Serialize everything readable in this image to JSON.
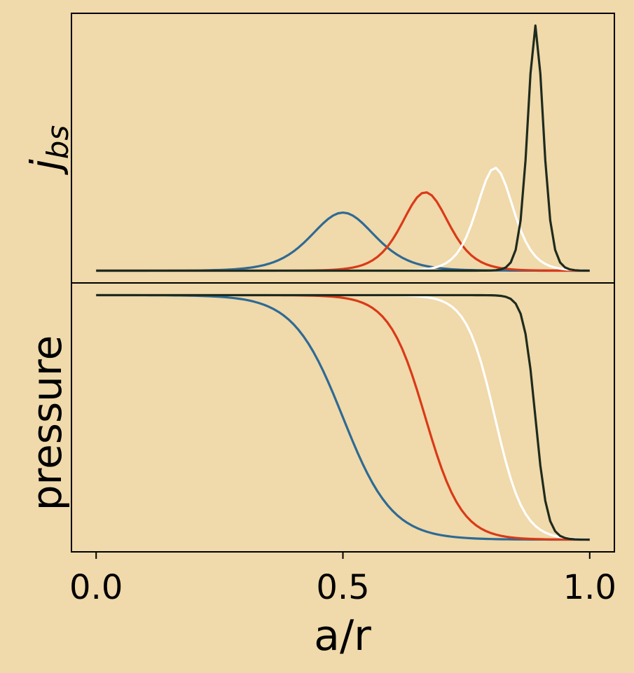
{
  "background": "#F0D9AA",
  "chart_data": [
    {
      "type": "line",
      "panel": "top",
      "ylabel_parts": {
        "base": "j",
        "sub": "bs"
      },
      "xlim": [
        -0.05,
        1.05
      ],
      "ylim": [
        -0.05,
        1.05
      ],
      "yticks": false,
      "grid": false,
      "legend": false,
      "series": [
        {
          "color": "#2E6A94",
          "peak_x": 0.5,
          "peak_y": 0.237,
          "width": 0.087
        },
        {
          "color": "#D93A18",
          "peak_x": 0.667,
          "peak_y": 0.32,
          "width": 0.064
        },
        {
          "color": "#FFFFFF",
          "peak_x": 0.808,
          "peak_y": 0.42,
          "width": 0.05
        },
        {
          "color": "#1E2B1E",
          "peak_x": 0.89,
          "peak_y": 1.0,
          "width": 0.021
        }
      ]
    },
    {
      "type": "line",
      "panel": "bottom",
      "ylabel": "pressure",
      "xlabel": "a/r",
      "xlim": [
        -0.05,
        1.05
      ],
      "ylim": [
        -0.05,
        1.05
      ],
      "xticks": [
        0.0,
        0.5,
        1.0
      ],
      "xtick_labels": [
        "0.0",
        "0.5",
        "1.0"
      ],
      "yticks": false,
      "grid": false,
      "legend": false,
      "series": [
        {
          "color": "#2E6A94",
          "midpoint_x": 0.5,
          "y_start": 1.0,
          "y_end": 0.0,
          "width": 0.05
        },
        {
          "color": "#D93A18",
          "midpoint_x": 0.667,
          "y_start": 1.0,
          "y_end": 0.0,
          "width": 0.037
        },
        {
          "color": "#FFFFFF",
          "midpoint_x": 0.808,
          "y_start": 1.0,
          "y_end": 0.0,
          "width": 0.029
        },
        {
          "color": "#1E2B1E",
          "midpoint_x": 0.89,
          "y_start": 1.0,
          "y_end": 0.0,
          "width": 0.012
        }
      ]
    }
  ]
}
